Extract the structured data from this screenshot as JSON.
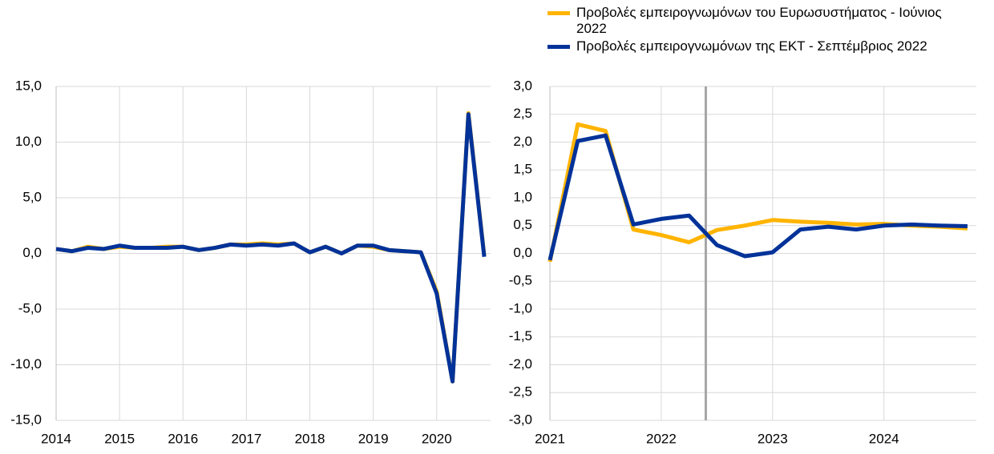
{
  "chart_data": [
    {
      "type": "line",
      "x": [
        2014,
        2014.25,
        2014.5,
        2014.75,
        2015,
        2015.25,
        2015.5,
        2015.75,
        2016,
        2016.25,
        2016.5,
        2016.75,
        2017,
        2017.25,
        2017.5,
        2017.75,
        2018,
        2018.25,
        2018.5,
        2018.75,
        2019,
        2019.25,
        2019.5,
        2019.75,
        2020,
        2020.25,
        2020.5,
        2020.75
      ],
      "series": [
        {
          "color": "#ffb400",
          "values": [
            0.4,
            0.2,
            0.6,
            0.4,
            0.6,
            0.5,
            0.5,
            0.6,
            0.6,
            0.3,
            0.5,
            0.8,
            0.8,
            0.9,
            0.8,
            0.9,
            0.1,
            0.6,
            0.0,
            0.7,
            0.6,
            0.3,
            0.2,
            0.1,
            -3.4,
            -11.5,
            12.6,
            -0.2
          ]
        },
        {
          "color": "#003299",
          "values": [
            0.4,
            0.2,
            0.5,
            0.4,
            0.7,
            0.5,
            0.5,
            0.5,
            0.6,
            0.3,
            0.5,
            0.8,
            0.7,
            0.8,
            0.7,
            0.9,
            0.1,
            0.6,
            0.0,
            0.7,
            0.7,
            0.3,
            0.2,
            0.1,
            -3.6,
            -11.5,
            12.5,
            -0.3
          ]
        }
      ],
      "xlim": [
        2014,
        2020.85
      ],
      "xticks": [
        2014,
        2015,
        2016,
        2017,
        2018,
        2019,
        2020
      ],
      "ylim": [
        -15,
        15
      ],
      "yticks": [
        {
          "value": -15,
          "label": "-15,0"
        },
        {
          "value": -10,
          "label": "-10,0"
        },
        {
          "value": -5,
          "label": "-5,0"
        },
        {
          "value": 0,
          "label": "0,0"
        },
        {
          "value": 5,
          "label": "5,0"
        },
        {
          "value": 10,
          "label": "10,0"
        },
        {
          "value": 15,
          "label": "15,0"
        }
      ],
      "grid": true
    },
    {
      "type": "line",
      "x": [
        2021,
        2021.25,
        2021.5,
        2021.75,
        2022,
        2022.25,
        2022.5,
        2022.75,
        2023,
        2023.25,
        2023.5,
        2023.75,
        2024,
        2024.25,
        2024.5,
        2024.75
      ],
      "series": [
        {
          "name": "Προβολές εμπειρογνωμόνων του Ευρωσυστήματος - Ιούνιος 2022",
          "color": "#ffb400",
          "values": [
            -0.15,
            2.32,
            2.2,
            0.43,
            0.33,
            0.2,
            0.42,
            0.5,
            0.6,
            0.57,
            0.55,
            0.52,
            0.53,
            0.5,
            0.48,
            0.45
          ]
        },
        {
          "name": "Προβολές εμπειρογνωμόνων της ΕΚΤ - Σεπτέμβριος 2022",
          "color": "#003299",
          "values": [
            -0.12,
            2.02,
            2.12,
            0.52,
            0.62,
            0.68,
            0.15,
            -0.05,
            0.02,
            0.43,
            0.48,
            0.43,
            0.5,
            0.52,
            0.5,
            0.49
          ]
        }
      ],
      "xlim": [
        2021,
        2024.83
      ],
      "xticks": [
        2021,
        2022,
        2023,
        2024
      ],
      "ylim": [
        -3,
        3
      ],
      "yticks": [
        {
          "value": -3,
          "label": "-3,0"
        },
        {
          "value": -2.5,
          "label": "-2,5"
        },
        {
          "value": -2,
          "label": "-2,0"
        },
        {
          "value": -1.5,
          "label": "-1,5"
        },
        {
          "value": -1,
          "label": "-1,0"
        },
        {
          "value": -0.5,
          "label": "-0,5"
        },
        {
          "value": 0,
          "label": "0,0"
        },
        {
          "value": 0.5,
          "label": "0,5"
        },
        {
          "value": 1,
          "label": "1,0"
        },
        {
          "value": 1.5,
          "label": "1,5"
        },
        {
          "value": 2,
          "label": "2,0"
        },
        {
          "value": 2.5,
          "label": "2,5"
        },
        {
          "value": 3,
          "label": "3,0"
        }
      ],
      "vline": 2022.4,
      "vline_color": "#a6a6a6",
      "grid": true
    }
  ]
}
